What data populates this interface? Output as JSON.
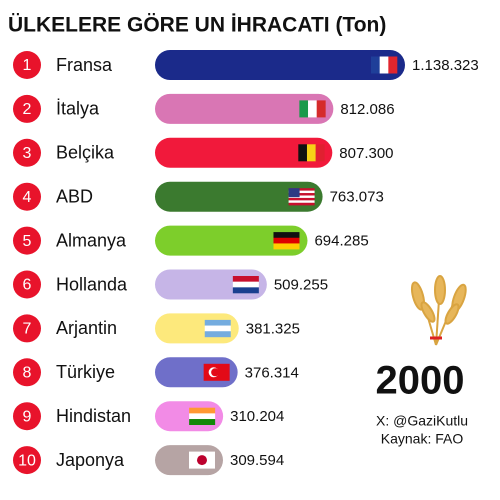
{
  "chart_data": {
    "type": "bar",
    "orientation": "horizontal",
    "title": "ÜLKELERE GÖRE UN İHRACATI (Ton)",
    "ranks": [
      1,
      2,
      3,
      4,
      5,
      6,
      7,
      8,
      9,
      10
    ],
    "categories": [
      "Fransa",
      "İtalya",
      "Belçika",
      "ABD",
      "Almanya",
      "Hollanda",
      "Arjantin",
      "Türkiye",
      "Hindistan",
      "Japonya"
    ],
    "values": [
      1138323,
      812086,
      807300,
      763073,
      694285,
      509255,
      381325,
      376314,
      310204,
      309594
    ],
    "value_labels": [
      "1.138.323",
      "812.086",
      "807.300",
      "763.073",
      "694.285",
      "509.255",
      "381.325",
      "376.314",
      "310.204",
      "309.594"
    ],
    "colors": [
      "#1b2a8a",
      "#d976b4",
      "#f1193b",
      "#3b7a2f",
      "#7dce2b",
      "#c6b5e7",
      "#fde97c",
      "#6f6fc9",
      "#f28be6",
      "#b6a4a4"
    ],
    "year": "2000",
    "credit": "X: @GaziKutlu",
    "source": "Kaynak: FAO"
  }
}
